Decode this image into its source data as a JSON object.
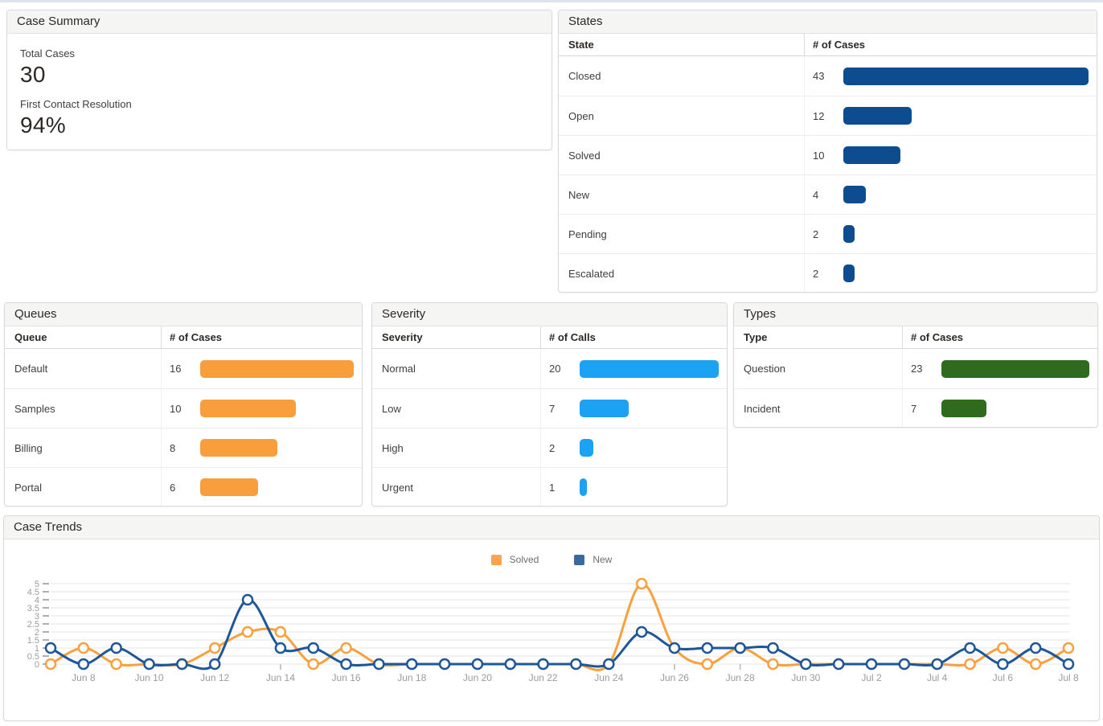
{
  "page": {
    "top_strip_color": "#dce3ee"
  },
  "panels": {
    "case_summary": {
      "title": "Case Summary",
      "metrics": [
        {
          "label": "Total Cases",
          "value": "30"
        },
        {
          "label": "First Contact Resolution",
          "value": "94%"
        }
      ]
    },
    "states": {
      "title": "States",
      "col1": "State",
      "col2": "# of Cases",
      "bar_color": "#0D4D8F",
      "rows": [
        {
          "label": "Closed",
          "value": 43
        },
        {
          "label": "Open",
          "value": 12
        },
        {
          "label": "Solved",
          "value": 10
        },
        {
          "label": "New",
          "value": 4
        },
        {
          "label": "Pending",
          "value": 2
        },
        {
          "label": "Escalated",
          "value": 2
        }
      ]
    },
    "queues": {
      "title": "Queues",
      "col1": "Queue",
      "col2": "# of Cases",
      "bar_color": "#F99E3D",
      "rows": [
        {
          "label": "Default",
          "value": 16
        },
        {
          "label": "Samples",
          "value": 10
        },
        {
          "label": "Billing",
          "value": 8
        },
        {
          "label": "Portal",
          "value": 6
        }
      ]
    },
    "severity": {
      "title": "Severity",
      "col1": "Severity",
      "col2": "# of Calls",
      "bar_color": "#1BA2F2",
      "rows": [
        {
          "label": "Normal",
          "value": 20
        },
        {
          "label": "Low",
          "value": 7
        },
        {
          "label": "High",
          "value": 2
        },
        {
          "label": "Urgent",
          "value": 1
        }
      ]
    },
    "types": {
      "title": "Types",
      "col1": "Type",
      "col2": "# of Cases",
      "bar_color": "#2E6B1F",
      "rows": [
        {
          "label": "Question",
          "value": 23
        },
        {
          "label": "Incident",
          "value": 7
        }
      ]
    },
    "case_trends": {
      "title": "Case Trends",
      "legend": [
        {
          "label": "Solved",
          "swatch_color": "#F9A54F"
        },
        {
          "label": "New",
          "swatch_color": "#3A6B9E"
        }
      ]
    }
  },
  "chart_data": [
    {
      "type": "line",
      "title": "Case Trends",
      "x": [
        "Jun 7",
        "Jun 8",
        "Jun 9",
        "Jun 10",
        "Jun 11",
        "Jun 12",
        "Jun 13",
        "Jun 14",
        "Jun 15",
        "Jun 16",
        "Jun 17",
        "Jun 18",
        "Jun 19",
        "Jun 20",
        "Jun 21",
        "Jun 22",
        "Jun 23",
        "Jun 24",
        "Jun 25",
        "Jun 26",
        "Jun 27",
        "Jun 28",
        "Jun 29",
        "Jun 30",
        "Jul 1",
        "Jul 2",
        "Jul 3",
        "Jul 4",
        "Jul 5",
        "Jul 6",
        "Jul 7",
        "Jul 8"
      ],
      "xticks_every": 2,
      "ylim": [
        0,
        5
      ],
      "ytick_step": 0.5,
      "grid": true,
      "legend_position": "top-center",
      "series": [
        {
          "name": "Solved",
          "color": "#F9A03F",
          "values": [
            0,
            1,
            0,
            0,
            0,
            1,
            2,
            2,
            0,
            1,
            0,
            0,
            0,
            0,
            0,
            0,
            0,
            0,
            5,
            1,
            0,
            1,
            0,
            0,
            0,
            0,
            0,
            0,
            0,
            1,
            0,
            1
          ]
        },
        {
          "name": "New",
          "color": "#1E5799",
          "values": [
            1,
            0,
            1,
            0,
            0,
            0,
            4,
            1,
            1,
            0,
            0,
            0,
            0,
            0,
            0,
            0,
            0,
            0,
            2,
            1,
            1,
            1,
            1,
            0,
            0,
            0,
            0,
            0,
            1,
            0,
            1,
            0
          ]
        }
      ]
    },
    {
      "type": "bar",
      "title": "States",
      "value_label": "# of Cases",
      "color": "#0D4D8F",
      "categories": [
        "Closed",
        "Open",
        "Solved",
        "New",
        "Pending",
        "Escalated"
      ],
      "values": [
        43,
        12,
        10,
        4,
        2,
        2
      ]
    },
    {
      "type": "bar",
      "title": "Queues",
      "value_label": "# of Cases",
      "color": "#F99E3D",
      "categories": [
        "Default",
        "Samples",
        "Billing",
        "Portal"
      ],
      "values": [
        16,
        10,
        8,
        6
      ]
    },
    {
      "type": "bar",
      "title": "Severity",
      "value_label": "# of Calls",
      "color": "#1BA2F2",
      "categories": [
        "Normal",
        "Low",
        "High",
        "Urgent"
      ],
      "values": [
        20,
        7,
        2,
        1
      ]
    },
    {
      "type": "bar",
      "title": "Types",
      "value_label": "# of Cases",
      "color": "#2E6B1F",
      "categories": [
        "Question",
        "Incident"
      ],
      "values": [
        23,
        7
      ]
    }
  ]
}
